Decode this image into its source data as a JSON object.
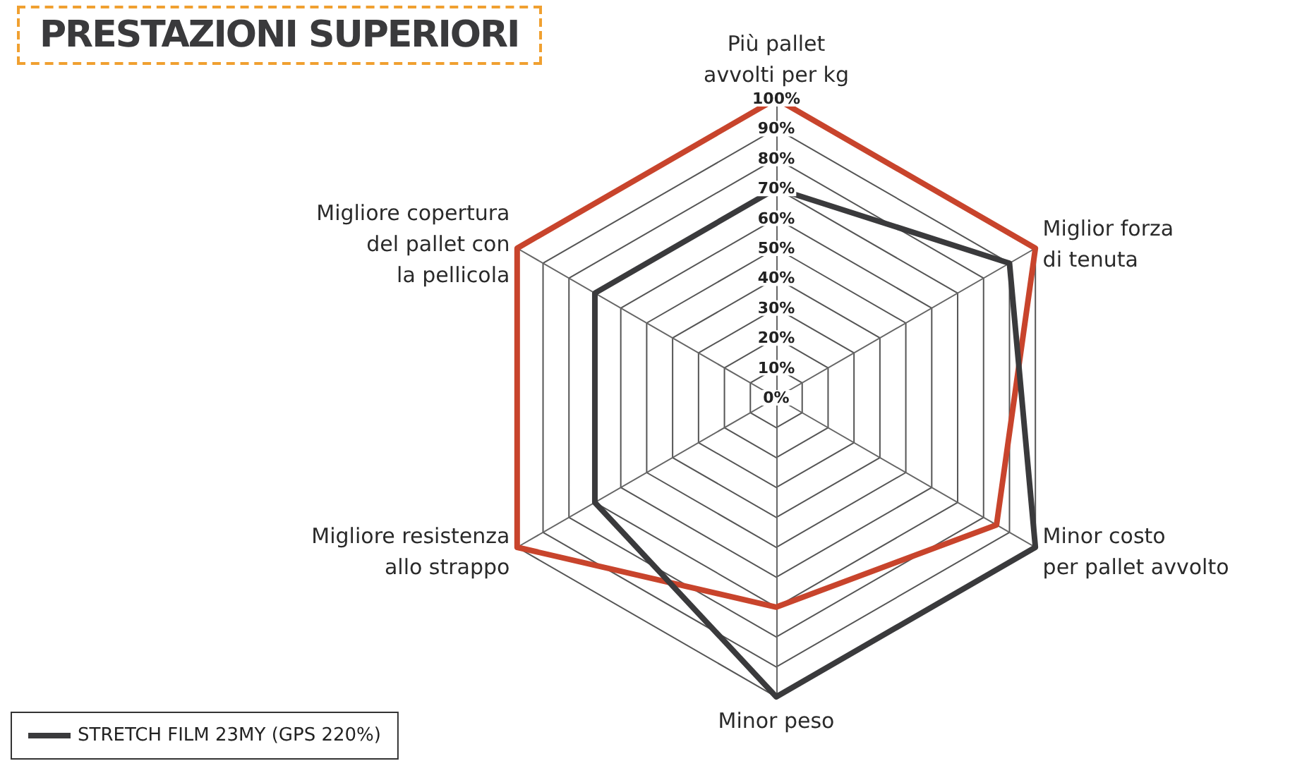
{
  "chart_data": {
    "type": "radar",
    "title": "PRESTAZIONI SUPERIORI",
    "categories": [
      "Più pallet\navvolti per kg",
      "Miglior forza\ndi tenuta",
      "Minor costo\nper pallet avvolto",
      "Minor peso",
      "Migliore resistenza\nallo strappo",
      "Migliore copertura\ndel pallet con\nla pellicola"
    ],
    "series": [
      {
        "name": "STRETCH FILM 23MY (GPS 220%)",
        "color": "#3a3a3c",
        "values": [
          70,
          90,
          100,
          100,
          70,
          70
        ]
      },
      {
        "color": "#c8442c",
        "values": [
          100,
          100,
          85,
          70,
          100,
          100
        ]
      }
    ],
    "ylim": [
      0,
      100
    ],
    "yticks": [
      {
        "value": 0,
        "label": "0%"
      },
      {
        "value": 10,
        "label": "10%"
      },
      {
        "value": 20,
        "label": "20%"
      },
      {
        "value": 30,
        "label": "30%"
      },
      {
        "value": 40,
        "label": "40%"
      },
      {
        "value": 50,
        "label": "50%"
      },
      {
        "value": 60,
        "label": "60%"
      },
      {
        "value": 70,
        "label": "70%"
      },
      {
        "value": 80,
        "label": "80%"
      },
      {
        "value": 90,
        "label": "90%"
      },
      {
        "value": 100,
        "label": "100%"
      }
    ],
    "legend": "bottom left",
    "grid": true
  }
}
